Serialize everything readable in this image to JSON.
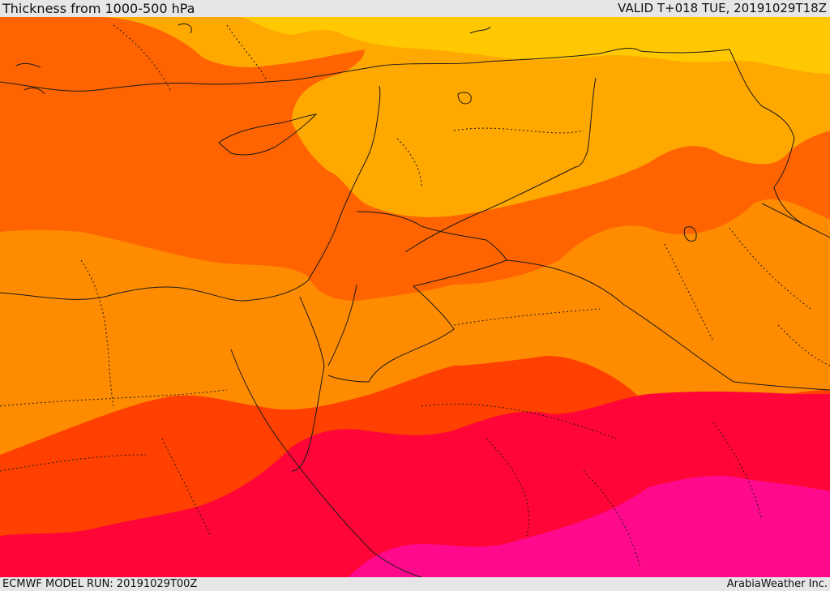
{
  "header": {
    "title": "Thickness from 1000-500 hPa",
    "valid": "VALID T+018 TUE, 20191029T18Z"
  },
  "footer": {
    "model_run": "ECMWF MODEL RUN: 20191029T00Z",
    "credit": "ArabiaWeather Inc."
  },
  "colors": {
    "band1": "#ffc800",
    "band2": "#ffa800",
    "band3": "#ff8c00",
    "band4": "#ff6400",
    "band5": "#ff4000",
    "band6": "#ff0538",
    "band7": "#ff0a8c",
    "border": "#1a1a1a"
  }
}
